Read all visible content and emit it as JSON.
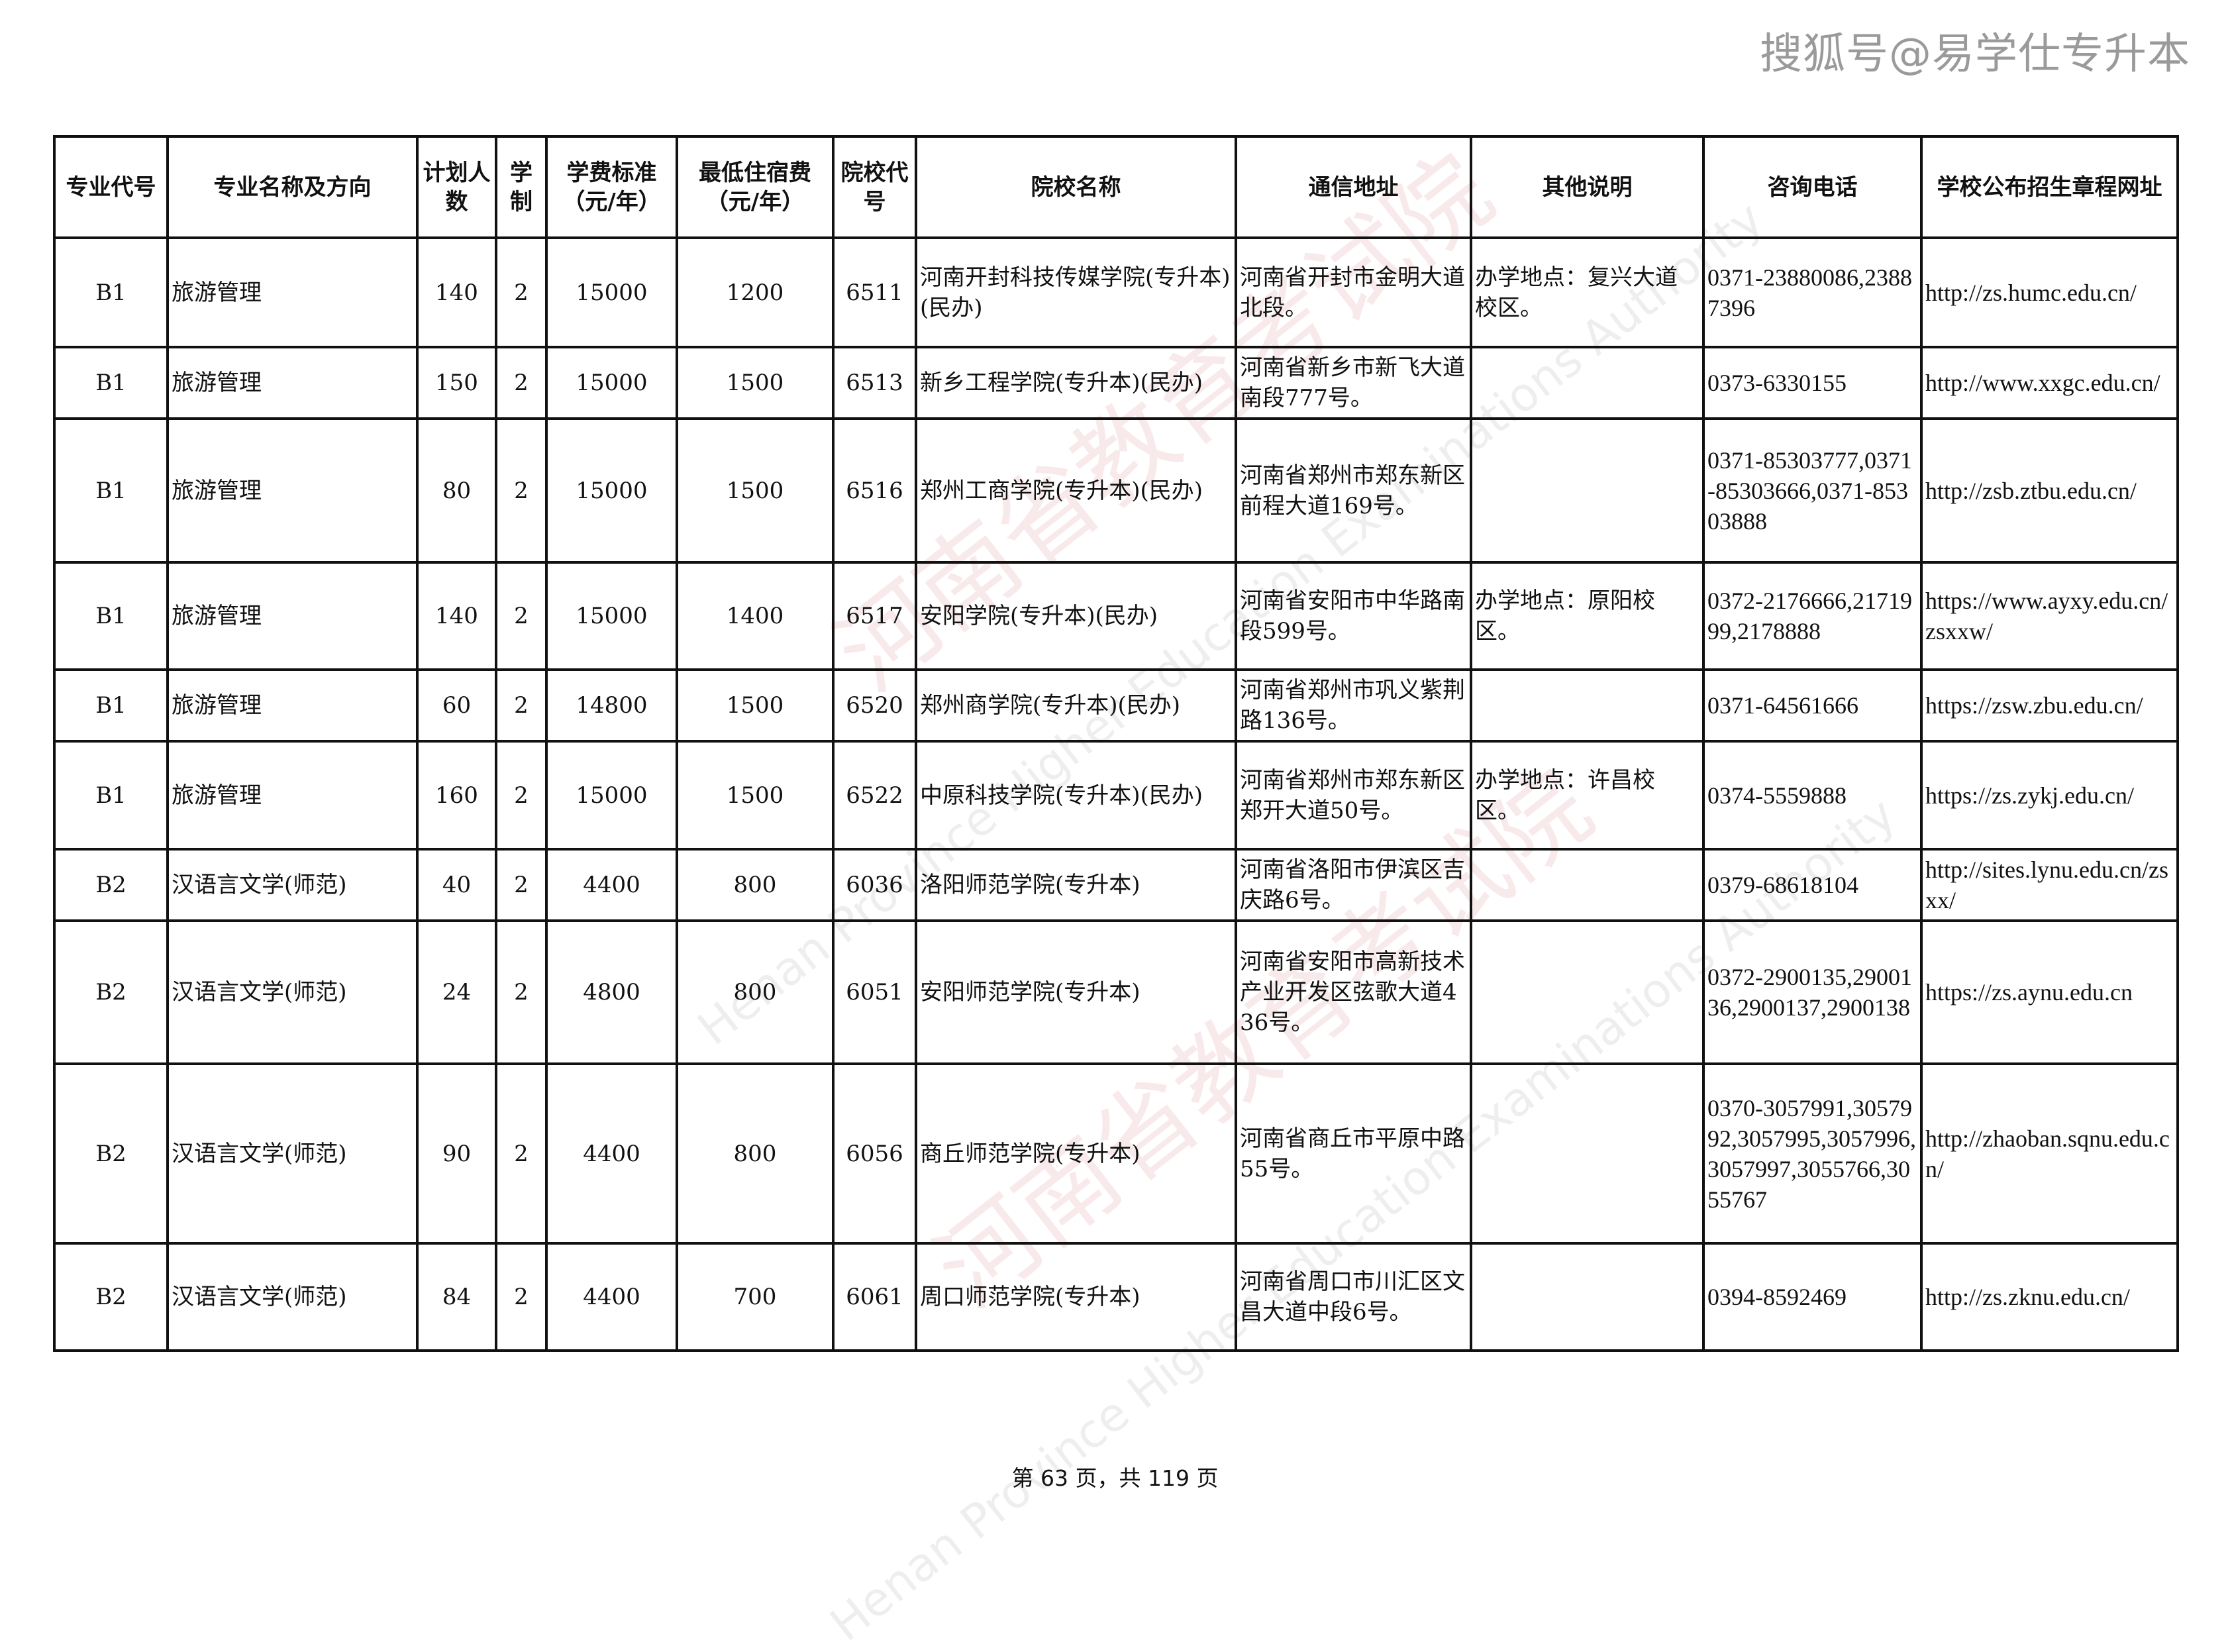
{
  "brand": "搜狐号@易学仕专升本",
  "watermark": {
    "text": "河南省教育考试院",
    "subtext": "Henan Province Higher Education Examinations Authority"
  },
  "headers": [
    "专业代号",
    "专业名称及方向",
    "计划人数",
    "学制",
    "学费标准（元/年）",
    "最低住宿费（元/年）",
    "院校代号",
    "院校名称",
    "通信地址",
    "其他说明",
    "咨询电话",
    "学校公布招生章程网址"
  ],
  "rows": [
    {
      "code": "B1",
      "major": "旅游管理",
      "plan": "140",
      "years": "2",
      "tuition": "15000",
      "dorm": "1200",
      "school_code": "6511",
      "school": "河南开封科技传媒学院(专升本)(民办)",
      "address": "河南省开封市金明大道北段。",
      "note": "办学地点：复兴大道校区。",
      "phone": "0371-23880086,23887396",
      "url": "http://zs.humc.edu.cn/"
    },
    {
      "code": "B1",
      "major": "旅游管理",
      "plan": "150",
      "years": "2",
      "tuition": "15000",
      "dorm": "1500",
      "school_code": "6513",
      "school": "新乡工程学院(专升本)(民办)",
      "address": "河南省新乡市新飞大道南段777号。",
      "note": "",
      "phone": "0373-6330155",
      "url": "http://www.xxgc.edu.cn/"
    },
    {
      "code": "B1",
      "major": "旅游管理",
      "plan": "80",
      "years": "2",
      "tuition": "15000",
      "dorm": "1500",
      "school_code": "6516",
      "school": "郑州工商学院(专升本)(民办)",
      "address": "河南省郑州市郑东新区前程大道169号。",
      "note": "",
      "phone": "0371-85303777,0371-85303666,0371-85303888",
      "url": "http://zsb.ztbu.edu.cn/"
    },
    {
      "code": "B1",
      "major": "旅游管理",
      "plan": "140",
      "years": "2",
      "tuition": "15000",
      "dorm": "1400",
      "school_code": "6517",
      "school": "安阳学院(专升本)(民办)",
      "address": "河南省安阳市中华路南段599号。",
      "note": "办学地点：原阳校区。",
      "phone": "0372-2176666,2171999,2178888",
      "url": "https://www.ayxy.edu.cn/zsxxw/"
    },
    {
      "code": "B1",
      "major": "旅游管理",
      "plan": "60",
      "years": "2",
      "tuition": "14800",
      "dorm": "1500",
      "school_code": "6520",
      "school": "郑州商学院(专升本)(民办)",
      "address": "河南省郑州市巩义紫荆路136号。",
      "note": "",
      "phone": "0371-64561666",
      "url": "https://zsw.zbu.edu.cn/"
    },
    {
      "code": "B1",
      "major": "旅游管理",
      "plan": "160",
      "years": "2",
      "tuition": "15000",
      "dorm": "1500",
      "school_code": "6522",
      "school": "中原科技学院(专升本)(民办)",
      "address": "河南省郑州市郑东新区郑开大道50号。",
      "note": "办学地点：许昌校区。",
      "phone": "0374-5559888",
      "url": "https://zs.zykj.edu.cn/"
    },
    {
      "code": "B2",
      "major": "汉语言文学(师范)",
      "plan": "40",
      "years": "2",
      "tuition": "4400",
      "dorm": "800",
      "school_code": "6036",
      "school": "洛阳师范学院(专升本)",
      "address": "河南省洛阳市伊滨区吉庆路6号。",
      "note": "",
      "phone": "0379-68618104",
      "url": "http://sites.lynu.edu.cn/zsxx/"
    },
    {
      "code": "B2",
      "major": "汉语言文学(师范)",
      "plan": "24",
      "years": "2",
      "tuition": "4800",
      "dorm": "800",
      "school_code": "6051",
      "school": "安阳师范学院(专升本)",
      "address": "河南省安阳市高新技术产业开发区弦歌大道436号。",
      "note": "",
      "phone": "0372-2900135,2900136,2900137,2900138",
      "url": "https://zs.aynu.edu.cn"
    },
    {
      "code": "B2",
      "major": "汉语言文学(师范)",
      "plan": "90",
      "years": "2",
      "tuition": "4400",
      "dorm": "800",
      "school_code": "6056",
      "school": "商丘师范学院(专升本)",
      "address": "河南省商丘市平原中路55号。",
      "note": "",
      "phone": "0370-3057991,3057992,3057995,3057996,3057997,3055766,3055767",
      "url": "http://zhaoban.sqnu.edu.cn/"
    },
    {
      "code": "B2",
      "major": "汉语言文学(师范)",
      "plan": "84",
      "years": "2",
      "tuition": "4400",
      "dorm": "700",
      "school_code": "6061",
      "school": "周口师范学院(专升本)",
      "address": "河南省周口市川汇区文昌大道中段6号。",
      "note": "",
      "phone": "0394-8592469",
      "url": "http://zs.zknu.edu.cn/"
    }
  ],
  "footer": "第 63 页，共 119 页"
}
